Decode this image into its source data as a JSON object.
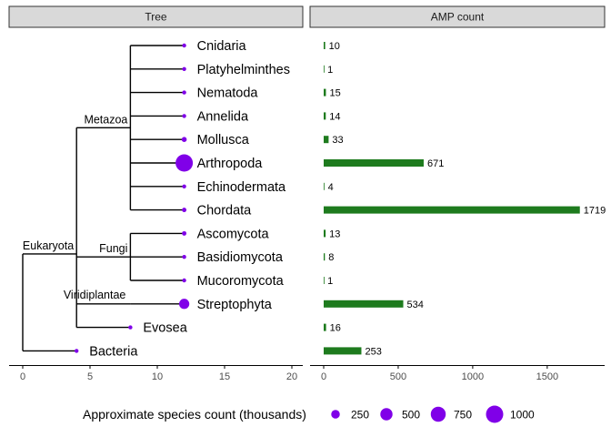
{
  "panels": {
    "left_title": "Tree",
    "right_title": "AMP count"
  },
  "colors": {
    "point": "#8000e8",
    "bar": "#1e7b1e",
    "strip": "#d9d9d9",
    "tree_line": "#000000"
  },
  "chart_data": [
    {
      "type": "tree",
      "panel": "Tree",
      "xlim": [
        -1,
        20.5
      ],
      "xticks": [
        0,
        5,
        10,
        15,
        20
      ],
      "root_x": 0,
      "clades": [
        {
          "name": "Eukaryota",
          "x": 4
        },
        {
          "name": "Metazoa",
          "x": 8
        },
        {
          "name": "Fungi",
          "x": 8
        },
        {
          "name": "Viridiplantae",
          "x": 8
        }
      ],
      "tips": [
        {
          "name": "Cnidaria",
          "x": 12,
          "species_thousands": 10
        },
        {
          "name": "Platyhelminthes",
          "x": 12,
          "species_thousands": 25
        },
        {
          "name": "Nematoda",
          "x": 12,
          "species_thousands": 25
        },
        {
          "name": "Annelida",
          "x": 12,
          "species_thousands": 20
        },
        {
          "name": "Mollusca",
          "x": 12,
          "species_thousands": 85
        },
        {
          "name": "Arthropoda",
          "x": 12,
          "species_thousands": 1000
        },
        {
          "name": "Echinodermata",
          "x": 12,
          "species_thousands": 7
        },
        {
          "name": "Chordata",
          "x": 12,
          "species_thousands": 65
        },
        {
          "name": "Ascomycota",
          "x": 12,
          "species_thousands": 65
        },
        {
          "name": "Basidiomycota",
          "x": 12,
          "species_thousands": 30
        },
        {
          "name": "Mucoromycota",
          "x": 12,
          "species_thousands": 1
        },
        {
          "name": "Streptophyta",
          "x": 12,
          "species_thousands": 350
        },
        {
          "name": "Evosea",
          "x": 8,
          "species_thousands": 1
        },
        {
          "name": "Bacteria",
          "x": 4,
          "species_thousands": 10
        }
      ],
      "legend": {
        "title": "Approximate species count (thousands)",
        "breaks": [
          250,
          500,
          750,
          1000
        ],
        "position": "bottom"
      }
    },
    {
      "type": "bar",
      "orientation": "horizontal",
      "panel": "AMP count",
      "categories": [
        "Cnidaria",
        "Platyhelminthes",
        "Nematoda",
        "Annelida",
        "Mollusca",
        "Arthropoda",
        "Echinodermata",
        "Chordata",
        "Ascomycota",
        "Basidiomycota",
        "Mucoromycota",
        "Streptophyta",
        "Evosea",
        "Bacteria"
      ],
      "values": [
        10,
        1,
        15,
        14,
        33,
        671,
        4,
        1719,
        13,
        8,
        1,
        534,
        16,
        253
      ],
      "value_labels": [
        "10",
        "1",
        "15",
        "14",
        "33",
        "671",
        "4",
        "1719",
        "13",
        "8",
        "1",
        "534",
        "16",
        "253"
      ],
      "xticks": [
        0,
        500,
        1000,
        1500
      ],
      "xlim": [
        -80,
        1900
      ]
    }
  ]
}
